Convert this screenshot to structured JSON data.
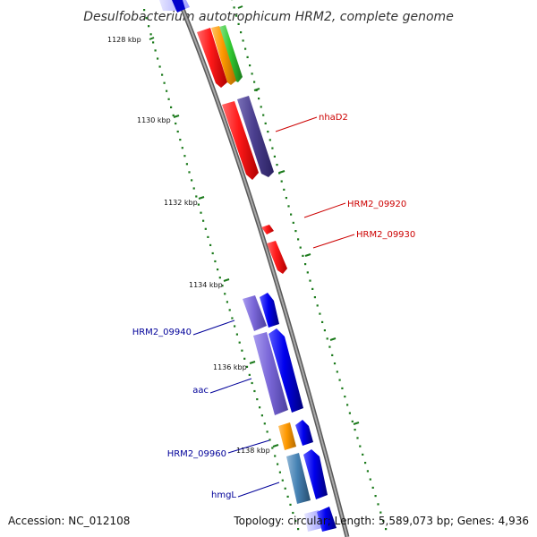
{
  "title": "Desulfobacterium autotrophicum HRM2, complete genome",
  "footer": {
    "accession": "Accession: NC_012108",
    "topology": "Topology: circular; Length: 5,589,073 bp; Genes: 4,936"
  },
  "ticks": [
    "1128 kbp",
    "1130 kbp",
    "1132 kbp",
    "1134 kbp",
    "1136 kbp",
    "1138 kbp"
  ],
  "gene_labels": {
    "nhaD2": "nhaD2",
    "hrm2_09920": "HRM2_09920",
    "hrm2_09930": "HRM2_09930",
    "hrm2_09940": "HRM2_09940",
    "aac": "aac",
    "hrm2_09960": "HRM2_09960",
    "hmgL": "hmgL"
  },
  "colors": {
    "backbone": "#8c8c8c",
    "tick_dots": "#1b7a1b",
    "forward_label": "#cc0000",
    "reverse_label": "#000099",
    "red": "#ff1a1a",
    "blue": "#0000ee",
    "purple": "#6a5acd",
    "dark_purple": "#4b3f8f",
    "orange": "#ff9900",
    "green": "#33cc33",
    "steel_blue": "#4682b4"
  }
}
